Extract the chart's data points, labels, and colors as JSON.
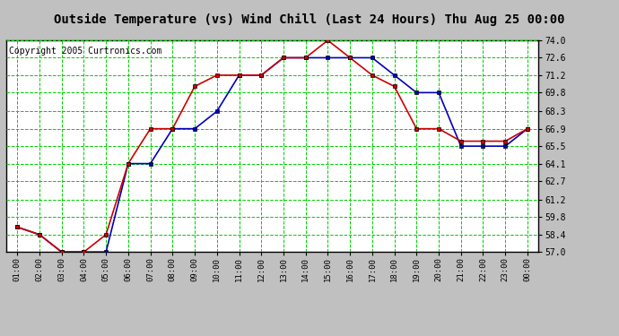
{
  "title": "Outside Temperature (vs) Wind Chill (Last 24 Hours) Thu Aug 25 00:00",
  "copyright": "Copyright 2005 Curtronics.com",
  "x_labels": [
    "01:00",
    "02:00",
    "03:00",
    "04:00",
    "05:00",
    "06:00",
    "07:00",
    "08:00",
    "09:00",
    "10:00",
    "11:00",
    "12:00",
    "13:00",
    "14:00",
    "15:00",
    "16:00",
    "17:00",
    "18:00",
    "19:00",
    "20:00",
    "21:00",
    "22:00",
    "23:00",
    "00:00"
  ],
  "blue_y": [
    59.0,
    58.4,
    57.0,
    57.0,
    57.0,
    64.1,
    64.1,
    66.9,
    66.9,
    68.3,
    71.2,
    71.2,
    72.6,
    72.6,
    72.6,
    72.6,
    72.6,
    71.2,
    69.8,
    69.8,
    65.5,
    65.5,
    65.5,
    66.9
  ],
  "red_y": [
    59.0,
    58.4,
    57.0,
    57.0,
    58.4,
    64.1,
    66.9,
    66.9,
    70.3,
    71.2,
    71.2,
    71.2,
    72.6,
    72.6,
    74.0,
    72.6,
    71.2,
    70.3,
    66.9,
    66.9,
    65.9,
    65.9,
    65.9,
    66.9
  ],
  "ylim": [
    57.0,
    74.0
  ],
  "yticks": [
    57.0,
    58.4,
    59.8,
    61.2,
    62.7,
    64.1,
    65.5,
    66.9,
    68.3,
    69.8,
    71.2,
    72.6,
    74.0
  ],
  "bg_color": "#c0c0c0",
  "plot_bg_color": "#ffffff",
  "grid_color": "#00cc00",
  "blue_color": "#0000bb",
  "red_color": "#cc0000",
  "title_fontsize": 10,
  "copyright_fontsize": 7
}
